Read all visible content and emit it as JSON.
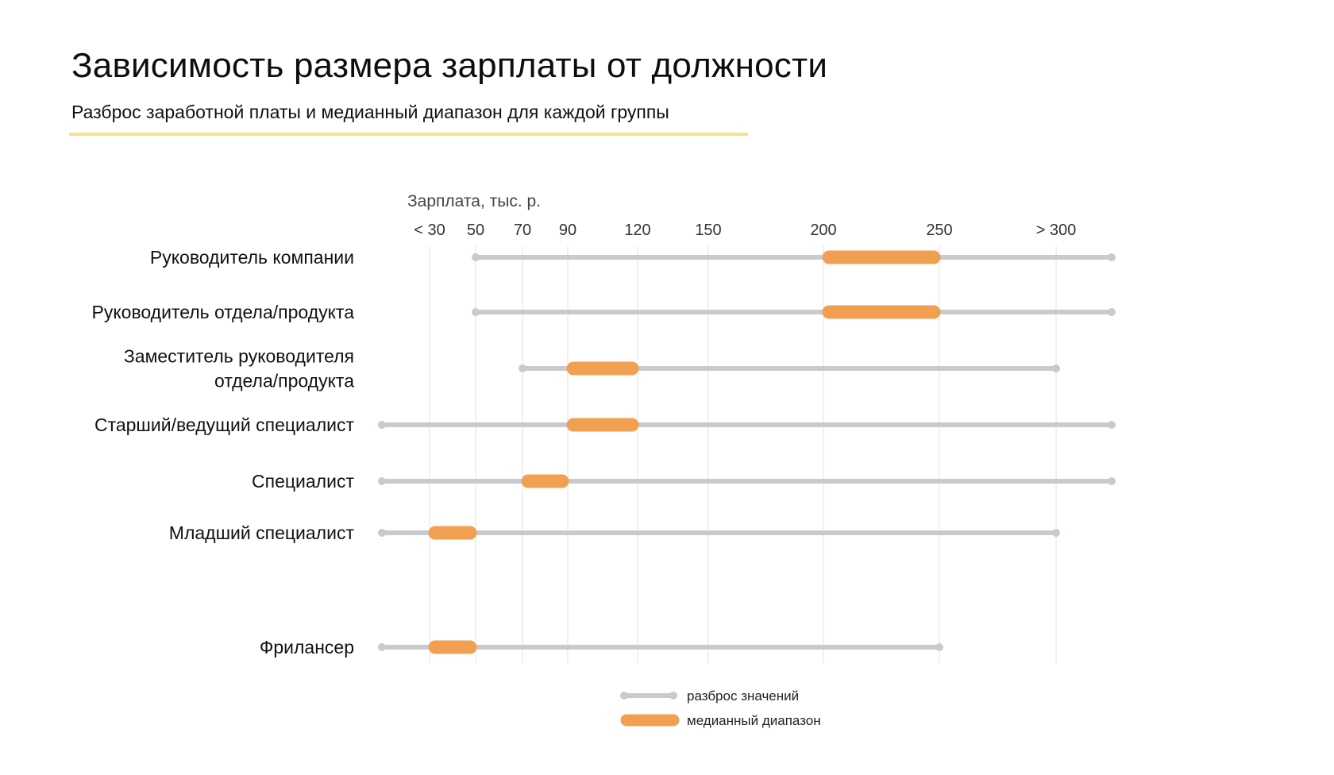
{
  "header": {
    "title": "Зависимость размера зарплаты от должности",
    "subtitle": "Разброс заработной платы и медианный диапазон для каждой группы"
  },
  "colors": {
    "range": "#c7cbcf",
    "median": "#f0a050",
    "grid": "#ececec",
    "accent_line": "#f7e08a"
  },
  "chart_data": {
    "type": "range-dumbbell",
    "xlabel": "Зарплата, тыс. р.",
    "tick_values": [
      20,
      50,
      70,
      90,
      120,
      150,
      200,
      250,
      300
    ],
    "tick_labels": [
      "< 30",
      "50",
      "70",
      "90",
      "120",
      "150",
      "200",
      "250",
      "> 300"
    ],
    "xlim": [
      0,
      325
    ],
    "grid": true,
    "legend": {
      "position": "bottom",
      "items": [
        {
          "key": "range",
          "label": "разброс значений"
        },
        {
          "key": "median",
          "label": "медианный диапазон"
        }
      ]
    },
    "categories": [
      {
        "label": [
          "Руководитель компании"
        ],
        "range": [
          50,
          325
        ],
        "median": [
          200,
          250
        ]
      },
      {
        "label": [
          "Руководитель отдела/продукта"
        ],
        "range": [
          50,
          325
        ],
        "median": [
          200,
          250
        ]
      },
      {
        "label": [
          "Заместитель руководителя",
          "отдела/продукта"
        ],
        "range": [
          70,
          300
        ],
        "median": [
          90,
          120
        ]
      },
      {
        "label": [
          "Старший/ведущий специалист"
        ],
        "range": [
          0,
          325
        ],
        "median": [
          90,
          120
        ]
      },
      {
        "label": [
          "Специалист"
        ],
        "range": [
          0,
          325
        ],
        "median": [
          70,
          90
        ]
      },
      {
        "label": [
          "Младший специалист"
        ],
        "range": [
          0,
          300
        ],
        "median": [
          20,
          50
        ]
      },
      {
        "label": [
          "Фрилансер"
        ],
        "range": [
          0,
          250
        ],
        "median": [
          20,
          50
        ]
      }
    ]
  }
}
